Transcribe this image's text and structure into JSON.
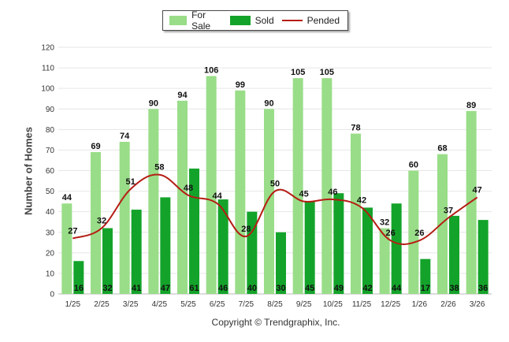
{
  "chart_data": {
    "type": "bar",
    "title": "",
    "xlabel": "",
    "ylabel": "Number of Homes",
    "ylim": [
      0,
      120
    ],
    "yticks": [
      0,
      10,
      20,
      30,
      40,
      50,
      60,
      70,
      80,
      90,
      100,
      110,
      120
    ],
    "categories": [
      "1/25",
      "2/25",
      "3/25",
      "4/25",
      "5/25",
      "6/25",
      "7/25",
      "8/25",
      "9/25",
      "10/25",
      "11/25",
      "12/25",
      "1/26",
      "2/26",
      "3/26"
    ],
    "series": [
      {
        "name": "For Sale",
        "kind": "bar",
        "color": "#99dd88",
        "values": [
          44,
          69,
          74,
          90,
          94,
          106,
          99,
          90,
          105,
          105,
          78,
          32,
          60,
          68,
          89
        ]
      },
      {
        "name": "Sold",
        "kind": "bar",
        "color": "#14a32a",
        "values": [
          16,
          32,
          41,
          47,
          61,
          46,
          40,
          30,
          45,
          49,
          42,
          44,
          17,
          38,
          36
        ]
      },
      {
        "name": "Pended",
        "kind": "line",
        "color": "#b51d14",
        "values": [
          27,
          32,
          51,
          58,
          48,
          44,
          28,
          50,
          45,
          46,
          42,
          26,
          26,
          37,
          47
        ]
      }
    ],
    "legend": "top-center",
    "grid": true
  },
  "footer": {
    "copyright": "Copyright © Trendgraphix, Inc."
  }
}
